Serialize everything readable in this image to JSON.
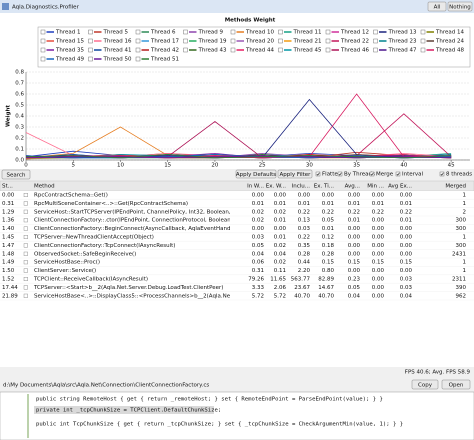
{
  "window": {
    "title": "Aqla.Diagnostics.Profiler",
    "buttons": [
      "All",
      "Nothing"
    ]
  },
  "chart_data": {
    "type": "line",
    "title": "Methods Weight",
    "y_label": "Weight",
    "x": [
      0,
      5,
      10,
      15,
      20,
      25,
      30,
      35,
      40,
      45
    ],
    "xlim": [
      0,
      47
    ],
    "xticks": [
      0,
      5,
      10,
      15,
      20,
      25,
      30,
      35,
      40,
      45
    ],
    "ylim": [
      0,
      0.8
    ],
    "yticks": [
      {
        "value": 0,
        "label": "0.0"
      },
      0.1,
      0.2,
      0.3,
      0.4,
      0.5,
      0.6,
      0.7,
      0.8
    ],
    "grid": true,
    "series": [
      {
        "name": "Thread 1",
        "color": "#1f3fbf",
        "values": [
          0.03,
          0.08,
          0.04,
          0.02,
          0.05,
          0.03,
          0.06,
          0.04,
          0.03,
          0.05
        ]
      },
      {
        "name": "Thread 5",
        "color": "#c0392b",
        "values": [
          0.02,
          0.04,
          0.03,
          0.06,
          0.03,
          0.04,
          0.02,
          0.07,
          0.04,
          0.03
        ]
      },
      {
        "name": "Thread 6",
        "color": "#2e8b57",
        "values": [
          0.01,
          0.03,
          0.02,
          0.02,
          0.04,
          0.02,
          0.03,
          0.02,
          0.05,
          0.02
        ]
      },
      {
        "name": "Thread 9",
        "color": "#8e44ad",
        "values": [
          0.04,
          0.02,
          0.05,
          0.03,
          0.02,
          0.06,
          0.03,
          0.04,
          0.02,
          0.04
        ]
      },
      {
        "name": "Thread 10",
        "color": "#e67e22",
        "values": [
          0.02,
          0.06,
          0.3,
          0.04,
          0.03,
          0.02,
          0.05,
          0.03,
          0.04,
          0.02
        ]
      },
      {
        "name": "Thread 11",
        "color": "#16a085",
        "values": [
          0.03,
          0.02,
          0.04,
          0.02,
          0.05,
          0.03,
          0.02,
          0.04,
          0.03,
          0.06
        ]
      },
      {
        "name": "Thread 12",
        "color": "#d0309a",
        "values": [
          0.01,
          0.03,
          0.02,
          0.04,
          0.02,
          0.03,
          0.04,
          0.02,
          0.03,
          0.02
        ]
      },
      {
        "name": "Thread 13",
        "color": "#1a237e",
        "values": [
          0.02,
          0.04,
          0.02,
          0.03,
          0.04,
          0.02,
          0.55,
          0.05,
          0.02,
          0.03
        ]
      },
      {
        "name": "Thread 14",
        "color": "#808000",
        "values": [
          0.03,
          0.02,
          0.03,
          0.05,
          0.02,
          0.04,
          0.02,
          0.03,
          0.04,
          0.02
        ]
      },
      {
        "name": "Thread 15",
        "color": "#e74c3c",
        "values": [
          0.02,
          0.03,
          0.05,
          0.02,
          0.03,
          0.02,
          0.04,
          0.02,
          0.03,
          0.04
        ]
      },
      {
        "name": "Thread 16",
        "color": "#ff6f91",
        "values": [
          0.25,
          0.04,
          0.03,
          0.06,
          0.04,
          0.03,
          0.05,
          0.03,
          0.06,
          0.03
        ]
      },
      {
        "name": "Thread 17",
        "color": "#3498db",
        "values": [
          0.02,
          0.05,
          0.02,
          0.03,
          0.02,
          0.05,
          0.03,
          0.04,
          0.02,
          0.03
        ]
      },
      {
        "name": "Thread 19",
        "color": "#27ae60",
        "values": [
          0.03,
          0.02,
          0.04,
          0.03,
          0.05,
          0.02,
          0.04,
          0.02,
          0.05,
          0.02
        ]
      },
      {
        "name": "Thread 20",
        "color": "#9b59b6",
        "values": [
          0.02,
          0.03,
          0.02,
          0.04,
          0.03,
          0.03,
          0.02,
          0.03,
          0.02,
          0.04
        ]
      },
      {
        "name": "Thread 21",
        "color": "#f39c12",
        "values": [
          0.01,
          0.02,
          0.03,
          0.02,
          0.02,
          0.04,
          0.02,
          0.02,
          0.03,
          0.02
        ]
      },
      {
        "name": "Thread 22",
        "color": "#c2185b",
        "values": [
          0.02,
          0.04,
          0.03,
          0.02,
          0.04,
          0.02,
          0.03,
          0.04,
          0.42,
          0.03
        ]
      },
      {
        "name": "Thread 23",
        "color": "#00838f",
        "values": [
          0.03,
          0.02,
          0.02,
          0.05,
          0.03,
          0.02,
          0.04,
          0.03,
          0.02,
          0.05
        ]
      },
      {
        "name": "Thread 24",
        "color": "#5d4037",
        "values": [
          0.02,
          0.03,
          0.04,
          0.02,
          0.02,
          0.03,
          0.02,
          0.05,
          0.03,
          0.02
        ]
      },
      {
        "name": "Thread 35",
        "color": "#7b1fa2",
        "values": [
          0.04,
          0.02,
          0.03,
          0.03,
          0.06,
          0.02,
          0.03,
          0.02,
          0.04,
          0.03
        ]
      },
      {
        "name": "Thread 41",
        "color": "#0d47a1",
        "values": [
          0.02,
          0.05,
          0.02,
          0.04,
          0.02,
          0.04,
          0.02,
          0.03,
          0.02,
          0.04
        ]
      },
      {
        "name": "Thread 42",
        "color": "#b71c1c",
        "values": [
          0.03,
          0.02,
          0.04,
          0.02,
          0.03,
          0.02,
          0.05,
          0.02,
          0.03,
          0.02
        ]
      },
      {
        "name": "Thread 43",
        "color": "#33691e",
        "values": [
          0.02,
          0.03,
          0.02,
          0.03,
          0.02,
          0.05,
          0.02,
          0.04,
          0.02,
          0.03
        ]
      },
      {
        "name": "Thread 44",
        "color": "#e91e63",
        "values": [
          0.03,
          0.04,
          0.03,
          0.02,
          0.04,
          0.03,
          0.02,
          0.03,
          0.05,
          0.02
        ]
      },
      {
        "name": "Thread 45",
        "color": "#0097a7",
        "values": [
          0.02,
          0.02,
          0.05,
          0.04,
          0.02,
          0.03,
          0.04,
          0.02,
          0.03,
          0.04
        ]
      },
      {
        "name": "Thread 46",
        "color": "#ad1457",
        "values": [
          0.02,
          0.04,
          0.02,
          0.03,
          0.35,
          0.02,
          0.03,
          0.04,
          0.02,
          0.03
        ]
      },
      {
        "name": "Thread 47",
        "color": "#4a148c",
        "values": [
          0.03,
          0.02,
          0.03,
          0.04,
          0.02,
          0.04,
          0.02,
          0.03,
          0.04,
          0.02
        ]
      },
      {
        "name": "Thread 48",
        "color": "#d81b60",
        "values": [
          0.02,
          0.03,
          0.04,
          0.02,
          0.03,
          0.02,
          0.03,
          0.6,
          0.03,
          0.04
        ]
      },
      {
        "name": "Thread 49",
        "color": "#1565c0",
        "values": [
          0.04,
          0.02,
          0.02,
          0.03,
          0.05,
          0.03,
          0.02,
          0.04,
          0.02,
          0.03
        ]
      },
      {
        "name": "Thread 50",
        "color": "#6a1b9a",
        "values": [
          0.02,
          0.03,
          0.03,
          0.02,
          0.03,
          0.04,
          0.03,
          0.02,
          0.03,
          0.02
        ]
      },
      {
        "name": "Thread 51",
        "color": "#2e7d32",
        "values": [
          0.03,
          0.04,
          0.02,
          0.05,
          0.02,
          0.03,
          0.04,
          0.03,
          0.02,
          0.04
        ]
      }
    ]
  },
  "controls": {
    "search": "Search",
    "apply_defaults": "Apply Defaults",
    "apply_filter": "Apply Filter",
    "checkboxes": [
      "Flatten",
      "By Threads",
      "Merge",
      "Interval"
    ],
    "threads": "8 threads"
  },
  "table": {
    "columns": [
      "St...",
      "Method",
      "In W...",
      "Ex. W...",
      "Inclu...",
      "Ex. Ti...",
      "Avg...",
      "Min ...",
      "Avg Ex...",
      "Merged"
    ],
    "rows": [
      [
        "0.00",
        "RpcContractSchema::Get()",
        "0.00",
        "0.00",
        "0.00",
        "0.00",
        "0.00",
        "0.00",
        "0.00",
        "1"
      ],
      [
        "0.31",
        "RpcMultiSceneContainer<..>::Get(RpcContractSchema)",
        "0.01",
        "0.01",
        "0.01",
        "0.01",
        "0.01",
        "0.01",
        "0.01",
        "1"
      ],
      [
        "1.29",
        "ServiceHost::StartTCPServer(IPEndPoint, ChannelPolicy, Int32, Boolean, Object)",
        "0.02",
        "0.02",
        "0.22",
        "0.22",
        "0.22",
        "0.22",
        "0.22",
        "2"
      ],
      [
        "1.36",
        "ClientConnectionFactory::.ctor(IPEndPoint, ConnectionProtocol, Boolean, Object)",
        "0.02",
        "0.01",
        "0.13",
        "0.05",
        "0.01",
        "0.00",
        "0.01",
        "300"
      ],
      [
        "1.40",
        "ClientConnectionFactory::BeginConnect(AsyncCallback, AqlaEventHandlerOnlineArg)",
        "0.00",
        "0.00",
        "0.03",
        "0.01",
        "0.00",
        "0.00",
        "0.00",
        "300"
      ],
      [
        "1.45",
        "TCPServer::NewThreadClientAccept(Object)",
        "0.03",
        "0.01",
        "0.22",
        "0.12",
        "0.00",
        "0.00",
        "0.00",
        "1"
      ],
      [
        "1.47",
        "ClientConnectionFactory::TcpConnect(IAsyncResult)",
        "0.05",
        "0.02",
        "0.35",
        "0.18",
        "0.00",
        "0.00",
        "0.00",
        "300"
      ],
      [
        "1.48",
        "ObservedSocket::SafeBeginReceive()",
        "0.04",
        "0.04",
        "0.28",
        "0.28",
        "0.00",
        "0.00",
        "0.00",
        "2431"
      ],
      [
        "1.49",
        "ServiceHostBase::Proc()",
        "0.06",
        "0.02",
        "0.44",
        "0.15",
        "0.15",
        "0.15",
        "0.15",
        "1"
      ],
      [
        "1.50",
        "ClientServer::Service()",
        "0.31",
        "0.11",
        "2.20",
        "0.80",
        "0.00",
        "0.00",
        "0.00",
        "1"
      ],
      [
        "1.52",
        "TCPClient::ReceiveCallback(IAsyncResult)",
        "79.26",
        "11.65",
        "563.77",
        "82.89",
        "0.23",
        "0.00",
        "0.03",
        "2311"
      ],
      [
        "17.44",
        "TCPServer::<Start>b__2(Aqla.Net.Server.Debug.LoadTest.ClientPeer)",
        "3.33",
        "2.06",
        "23.67",
        "14.67",
        "0.05",
        "0.00",
        "0.03",
        "390"
      ],
      [
        "21.89",
        "ServiceHostBase<..>::DisplayClass5::<ProcessChannels>b__2(Aqla.Net.ClientPeer)",
        "5.72",
        "5.72",
        "40.70",
        "40.70",
        "0.04",
        "0.00",
        "0.04",
        "962"
      ]
    ]
  },
  "status": "FPS 40.6; Avg. FPS 58.9",
  "file": {
    "path": "d:\\My Documents\\Aqla\\src\\Aqla.Net\\Connection\\ClientConnectionFactory.cs",
    "buttons": [
      "Copy",
      "Open"
    ]
  },
  "code": {
    "lines": [
      "public string RemoteHost { get { return _remoteHost; } set { RemoteEndPoint = ParseEndPoint(value); } }",
      "private int _tcpChunkSize = TCPClient.DefaultChunkSize;",
      "public int TcpChunkSize { get { return _tcpChunkSize; } set { _tcpChunkSize = CheckArgumentMin(value, 1); } }"
    ]
  }
}
